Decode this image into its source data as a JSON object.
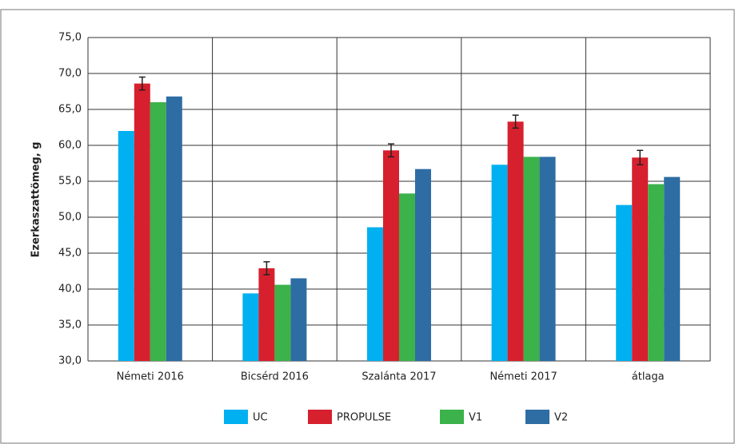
{
  "chart_data": {
    "type": "bar",
    "y_label": "Ezerkaszattömeg, g",
    "categories": [
      "Németi 2016",
      "Bicsérd 2016",
      "Szalánta 2017",
      "Németi 2017",
      "átlaga"
    ],
    "series": [
      {
        "name": "UC",
        "color": "#00b0f0",
        "values": [
          62.0,
          39.4,
          48.6,
          57.3,
          51.7
        ]
      },
      {
        "name": "PROPULSE",
        "color": "#d7202e",
        "values": [
          68.6,
          42.9,
          59.3,
          63.3,
          58.3
        ],
        "errors": [
          0.9,
          0.9,
          0.9,
          0.9,
          1.0
        ]
      },
      {
        "name": "V1",
        "color": "#3cb24a",
        "values": [
          66.0,
          40.6,
          53.3,
          58.4,
          54.6
        ]
      },
      {
        "name": "V2",
        "color": "#2e6da4",
        "values": [
          66.8,
          41.5,
          56.7,
          58.4,
          55.6
        ]
      }
    ],
    "ylim": [
      30,
      75
    ],
    "yticks": [
      {
        "value": 30,
        "label": "30,0"
      },
      {
        "value": 35,
        "label": "35,0"
      },
      {
        "value": 40,
        "label": "40,0"
      },
      {
        "value": 45,
        "label": "45,0"
      },
      {
        "value": 50,
        "label": "50,0"
      },
      {
        "value": 55,
        "label": "55,0"
      },
      {
        "value": 60,
        "label": "60,0"
      },
      {
        "value": 65,
        "label": "65,0"
      },
      {
        "value": 70,
        "label": "70,0"
      },
      {
        "value": 75,
        "label": "75,0"
      }
    ],
    "grid": true
  }
}
